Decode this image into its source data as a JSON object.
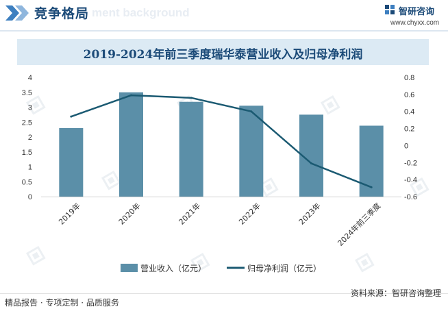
{
  "header": {
    "title": "竞争格局",
    "bg_text": "ment background",
    "brand": "智研咨询",
    "website": "www.chyxx.com"
  },
  "chart_data": {
    "type": "bar+line",
    "title": "2019-2024年前三季度瑞华泰营业收入及归母净利润",
    "categories": [
      "2019年",
      "2020年",
      "2021年",
      "2022年",
      "2023年",
      "2024年前三季度"
    ],
    "series": [
      {
        "name": "营业收入（亿元）",
        "type": "bar",
        "axis": "left",
        "color": "#5b8fa8",
        "values": [
          2.3,
          3.5,
          3.18,
          3.05,
          2.75,
          2.38
        ]
      },
      {
        "name": "归母净利润（亿元）",
        "type": "line",
        "axis": "right",
        "color": "#1b5a72",
        "values": [
          0.34,
          0.59,
          0.56,
          0.4,
          -0.21,
          -0.49
        ]
      }
    ],
    "y_left": {
      "min": 0,
      "max": 4,
      "step": 0.5,
      "ticks": [
        "0",
        "0.5",
        "1",
        "1.5",
        "2",
        "2.5",
        "3",
        "3.5",
        "4"
      ]
    },
    "y_right": {
      "min": -0.6,
      "max": 0.8,
      "step": 0.2,
      "ticks": [
        "-0.6",
        "-0.4",
        "-0.2",
        "0",
        "0.2",
        "0.4",
        "0.6",
        "0.8"
      ]
    },
    "legend_position": "bottom"
  },
  "footer": {
    "left": "精品报告 · 专项定制 · 品质服务",
    "source": "资料来源：智研咨询整理"
  }
}
